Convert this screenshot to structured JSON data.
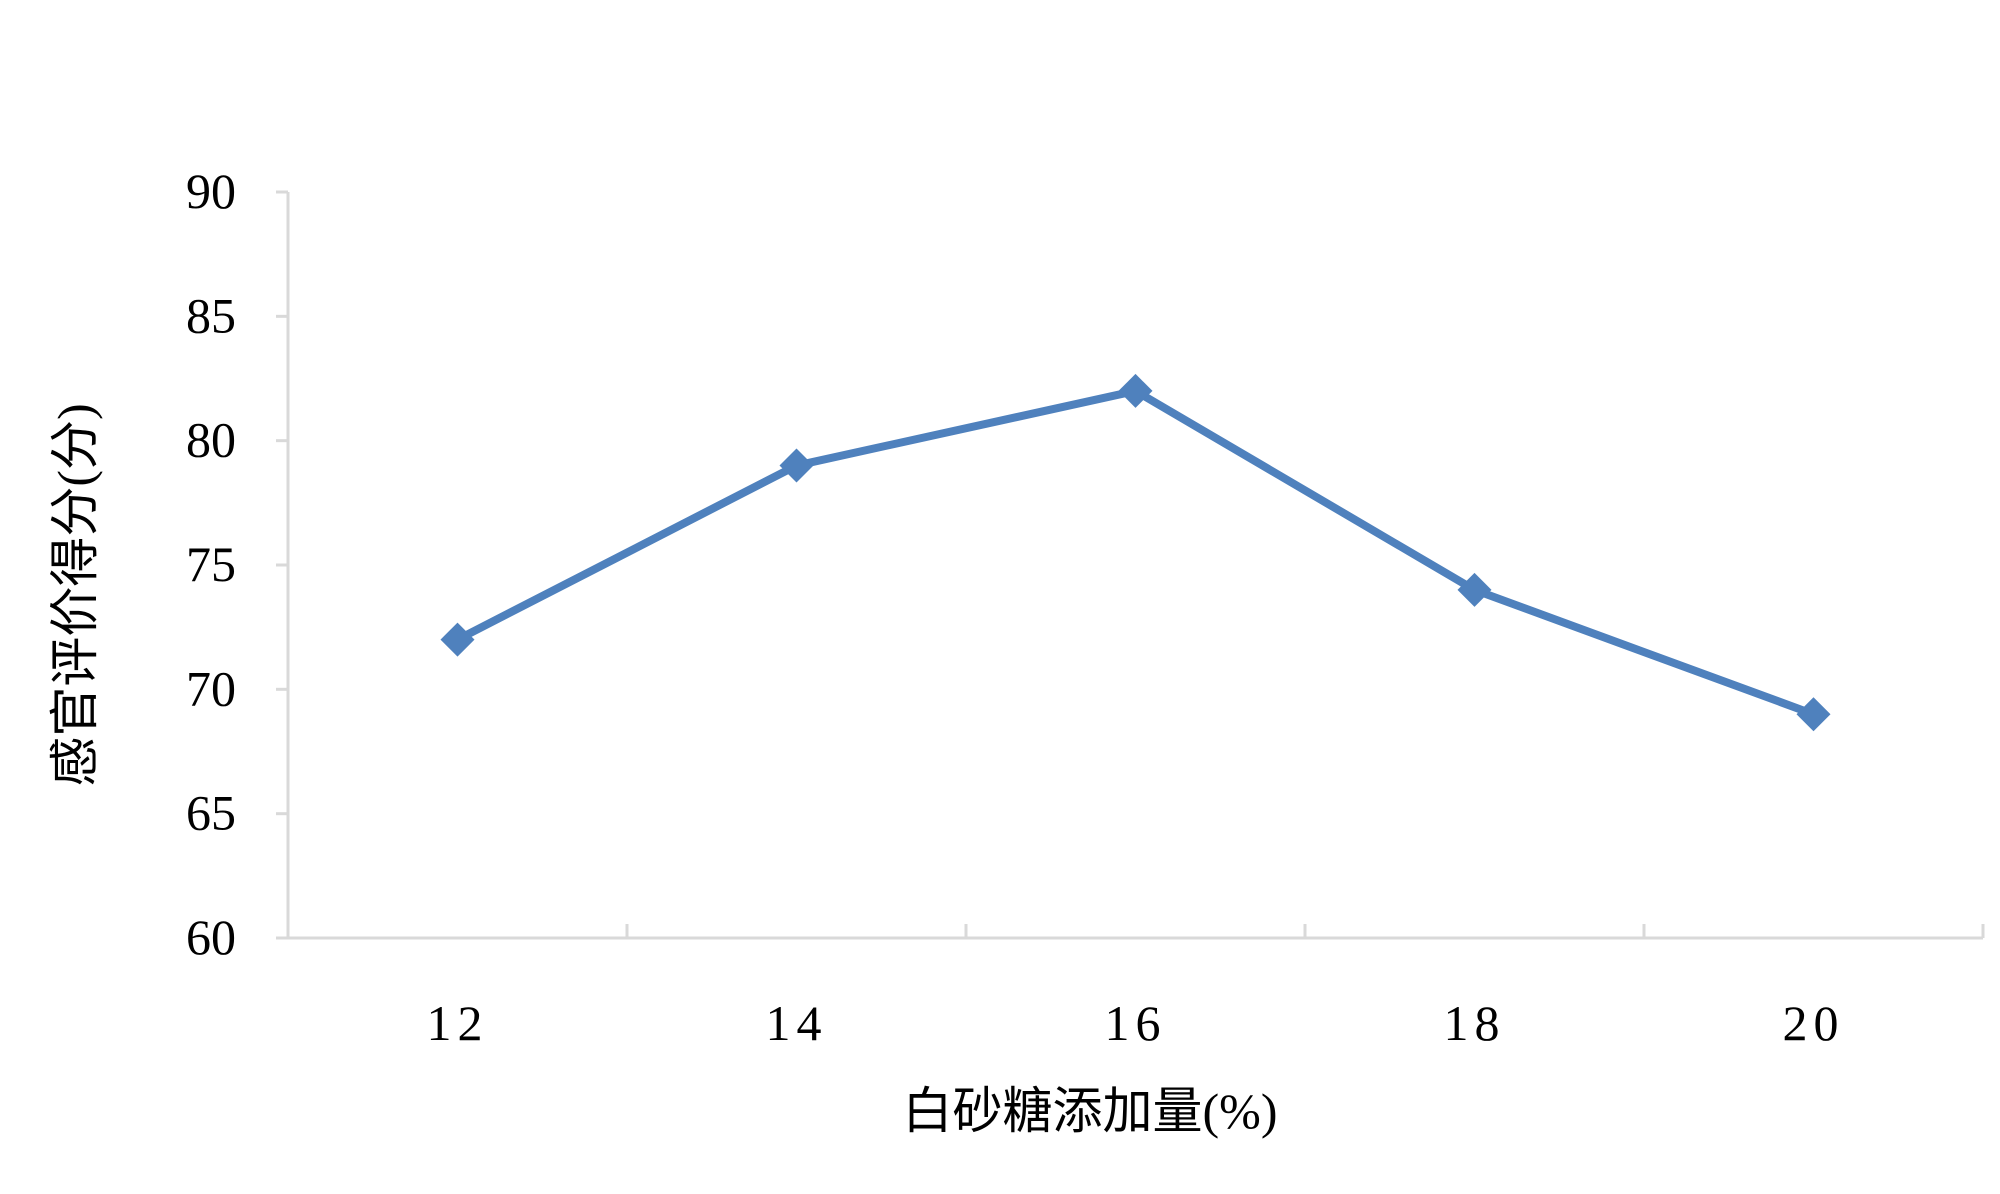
{
  "chart_data": {
    "type": "line",
    "title": "",
    "xlabel": "白砂糖添加量(%)",
    "ylabel": "感官评价得分(分)",
    "categories": [
      "12",
      "14",
      "16",
      "18",
      "20"
    ],
    "series": [
      {
        "values": [
          72,
          79,
          82,
          74,
          69
        ],
        "color": "#4f81bd",
        "marker": "diamond"
      }
    ],
    "ylim": [
      60,
      90
    ],
    "yticks": [
      "60",
      "65",
      "70",
      "75",
      "80",
      "85",
      "90"
    ],
    "grid": false,
    "legend": "none",
    "axis_color": "#d9d9d9"
  }
}
